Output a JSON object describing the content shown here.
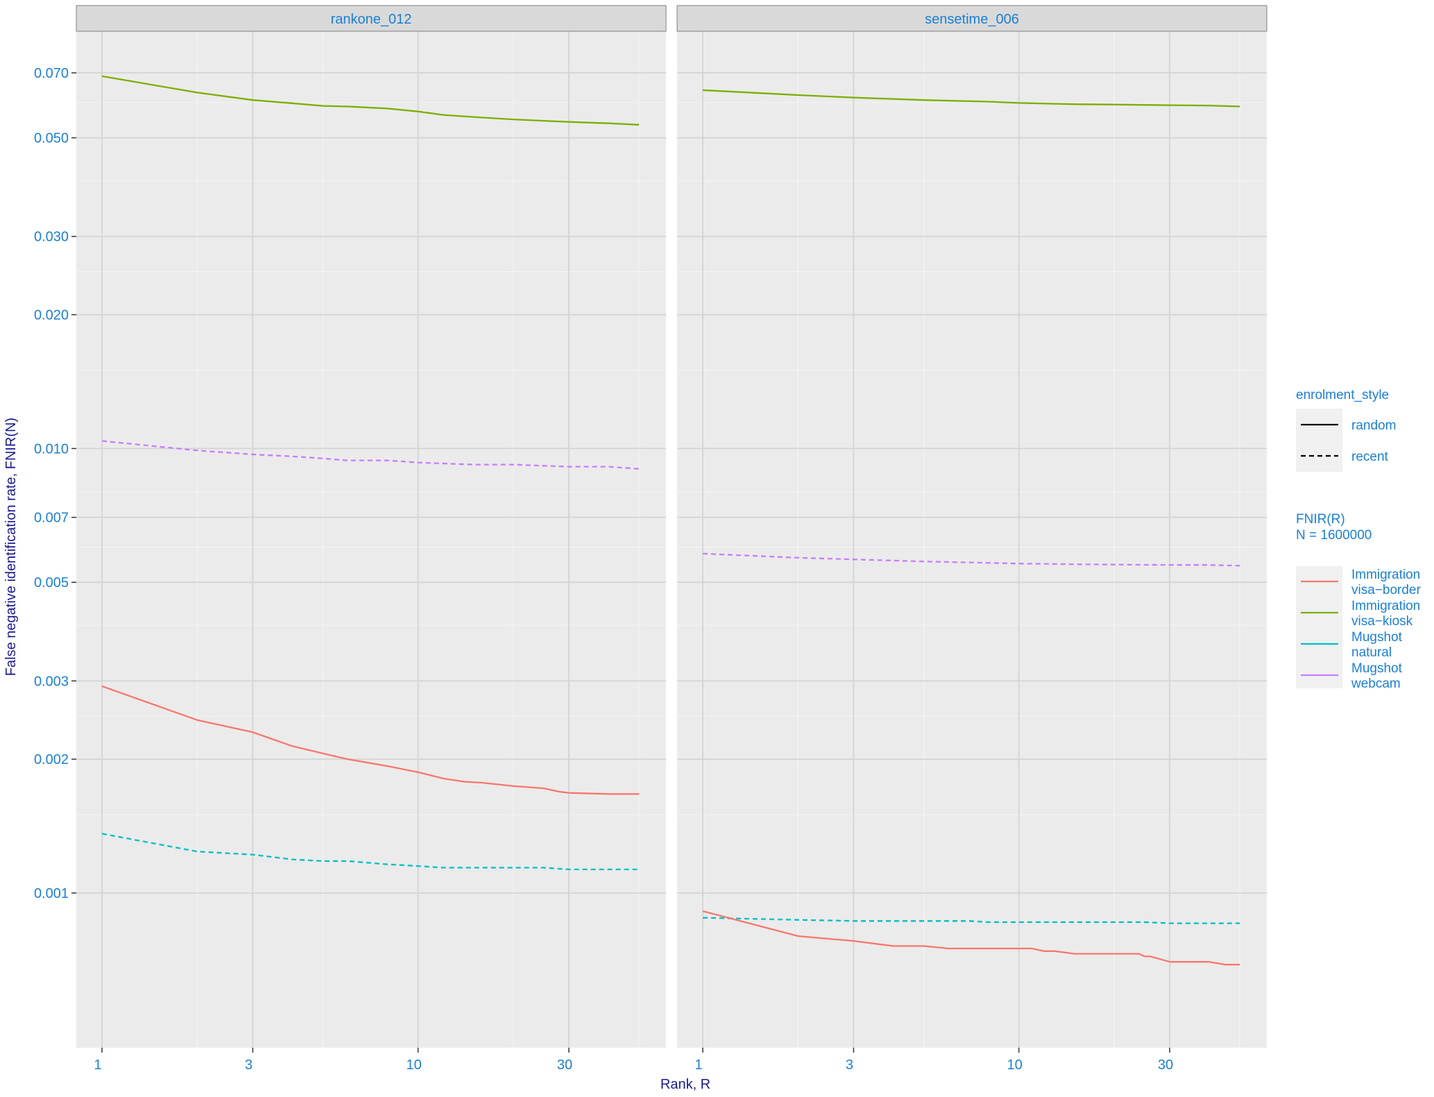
{
  "chart_data": {
    "type": "line",
    "xlabel": "Rank, R",
    "ylabel": "False negative identification rate, FNIR(N)",
    "x_scale": "log",
    "y_scale": "log",
    "xlim": [
      0.85,
      70
    ],
    "ylim": [
      0.00055,
      0.09
    ],
    "x_ticks": [
      1,
      3,
      10,
      30
    ],
    "x_tick_labels": [
      "1",
      "3",
      "10",
      "30"
    ],
    "y_ticks": [
      0.001,
      0.002,
      0.003,
      0.005,
      0.007,
      0.01,
      0.02,
      0.03,
      0.05,
      0.07
    ],
    "y_tick_labels": [
      "0.001",
      "0.002",
      "0.003",
      "0.005",
      "0.007",
      "0.010",
      "0.020",
      "0.030",
      "0.050",
      "0.070"
    ],
    "grid": true,
    "legend": {
      "placement": "right",
      "style_title": "enrolment_style",
      "styles": [
        {
          "label": "random",
          "dash": "solid"
        },
        {
          "label": "recent",
          "dash": "dashed"
        }
      ],
      "color_title_lines": [
        "FNIR(R)",
        "N = 1600000"
      ],
      "entries": [
        {
          "lines": [
            "Immigration",
            "visa−border"
          ],
          "color": "#F8766D"
        },
        {
          "lines": [
            "Immigration",
            "visa−kiosk"
          ],
          "color": "#7CAE00"
        },
        {
          "lines": [
            "Mugshot",
            "natural"
          ],
          "color": "#00BFC4"
        },
        {
          "lines": [
            "Mugshot",
            "webcam"
          ],
          "color": "#C77CFF"
        }
      ]
    },
    "panels": [
      {
        "title": "rankone_012",
        "series": [
          {
            "name": "Immigration visa-kiosk",
            "style": "random",
            "color": "#7CAE00",
            "x": [
              1,
              2,
              3,
              4,
              5,
              6,
              8,
              10,
              12,
              15,
              20,
              25,
              30,
              40,
              50
            ],
            "y": [
              0.0688,
              0.0632,
              0.0608,
              0.0598,
              0.059,
              0.0588,
              0.0582,
              0.0573,
              0.0563,
              0.0557,
              0.055,
              0.0546,
              0.0543,
              0.0539,
              0.0535
            ]
          },
          {
            "name": "Mugshot webcam",
            "style": "recent",
            "color": "#C77CFF",
            "x": [
              1,
              2,
              3,
              4,
              5,
              6,
              8,
              10,
              15,
              20,
              30,
              40,
              50
            ],
            "y": [
              0.0104,
              0.0099,
              0.0097,
              0.0096,
              0.0095,
              0.0094,
              0.0094,
              0.0093,
              0.0092,
              0.0092,
              0.0091,
              0.0091,
              0.009
            ]
          },
          {
            "name": "Immigration visa-border",
            "style": "random",
            "color": "#F8766D",
            "x": [
              1,
              2,
              3,
              4,
              5,
              6,
              8,
              10,
              12,
              14,
              16,
              20,
              25,
              28,
              30,
              40,
              50
            ],
            "y": [
              0.00292,
              0.00245,
              0.0023,
              0.00214,
              0.00206,
              0.002,
              0.00193,
              0.00187,
              0.00181,
              0.00178,
              0.00177,
              0.00174,
              0.00172,
              0.00169,
              0.00168,
              0.00167,
              0.00167
            ]
          },
          {
            "name": "Mugshot natural",
            "style": "recent",
            "color": "#00BFC4",
            "x": [
              1,
              2,
              3,
              4,
              5,
              6,
              8,
              10,
              12,
              15,
              20,
              25,
              30,
              40,
              50
            ],
            "y": [
              0.00136,
              0.00124,
              0.00122,
              0.00119,
              0.00118,
              0.00118,
              0.00116,
              0.00115,
              0.00114,
              0.00114,
              0.00114,
              0.00114,
              0.00113,
              0.00113,
              0.00113
            ]
          }
        ]
      },
      {
        "title": "sensetime_006",
        "series": [
          {
            "name": "Immigration visa-kiosk",
            "style": "random",
            "color": "#7CAE00",
            "x": [
              1,
              2,
              3,
              5,
              8,
              10,
              15,
              20,
              30,
              40,
              50
            ],
            "y": [
              0.064,
              0.0624,
              0.0616,
              0.0608,
              0.0603,
              0.0599,
              0.0595,
              0.0594,
              0.0592,
              0.0591,
              0.0588
            ]
          },
          {
            "name": "Mugshot webcam",
            "style": "recent",
            "color": "#C77CFF",
            "x": [
              1,
              2,
              3,
              5,
              8,
              10,
              15,
              20,
              30,
              40,
              50
            ],
            "y": [
              0.0058,
              0.00568,
              0.00563,
              0.00557,
              0.00553,
              0.00551,
              0.00549,
              0.00548,
              0.00547,
              0.00547,
              0.00545
            ]
          },
          {
            "name": "Mugshot natural",
            "style": "recent",
            "color": "#00BFC4",
            "x": [
              1,
              2,
              3,
              5,
              7,
              8,
              10,
              15,
              20,
              25,
              30,
              40,
              50
            ],
            "y": [
              0.00088,
              0.00087,
              0.000865,
              0.000865,
              0.000865,
              0.00086,
              0.00086,
              0.00086,
              0.00086,
              0.00086,
              0.000855,
              0.000855,
              0.000855
            ]
          },
          {
            "name": "Immigration visa-border",
            "style": "random",
            "color": "#F8766D",
            "x": [
              1,
              2,
              3,
              4,
              5,
              6,
              8,
              10,
              11,
              12,
              13,
              15,
              20,
              24,
              25,
              26,
              28,
              30,
              40,
              45,
              50
            ],
            "y": [
              0.00091,
              0.0008,
              0.00078,
              0.00076,
              0.00076,
              0.00075,
              0.00075,
              0.00075,
              0.00075,
              0.00074,
              0.00074,
              0.00073,
              0.00073,
              0.00073,
              0.00072,
              0.00072,
              0.00071,
              0.0007,
              0.0007,
              0.00069,
              0.00069
            ]
          }
        ]
      }
    ]
  }
}
